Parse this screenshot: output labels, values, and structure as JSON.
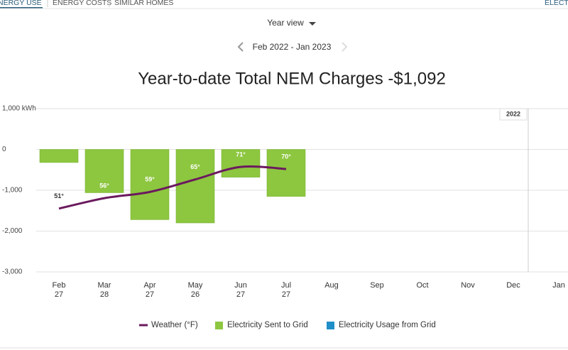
{
  "tabs": [
    "ENERGY USE",
    "ENERGY COSTS",
    "SIMILAR HOMES"
  ],
  "right_tab": "ELECTRIC",
  "view_selector": "Year view",
  "date_range": "Feb 2022 - Jan 2023",
  "chart_data": {
    "type": "bar",
    "title": "Year-to-date Total NEM Charges -$1,092",
    "categories": [
      "Feb",
      "Mar",
      "Apr",
      "May",
      "Jun",
      "Jul",
      "Aug",
      "Sep",
      "Oct",
      "Nov",
      "Dec",
      "Jan"
    ],
    "category_days": [
      "27",
      "28",
      "27",
      "26",
      "27",
      "27",
      null,
      null,
      null,
      null,
      null,
      null
    ],
    "annotation": "2022",
    "ylim": [
      -3000,
      1000
    ],
    "yticks": [
      {
        "value": 1000,
        "label": "1,000 kWh"
      },
      0,
      {
        "value": -1000,
        "label": "-1,000"
      },
      {
        "value": -2000,
        "label": "-2,000"
      },
      {
        "value": -3000,
        "label": "-3,000"
      }
    ],
    "y2lim": [
      20.6,
      99
    ],
    "grid": true,
    "series": [
      {
        "name": "Weather (°F)",
        "type": "line",
        "axis": "y2",
        "color": "#6b1a5e",
        "values": [
          51,
          56,
          59,
          65,
          71,
          70,
          null,
          null,
          null,
          null,
          null,
          null
        ],
        "value_labels": [
          "51°",
          "56°",
          "59°",
          "65°",
          "71°",
          "70°",
          null,
          null,
          null,
          null,
          null,
          null
        ]
      },
      {
        "name": "Electricity Sent to Grid",
        "type": "bar",
        "color": "#8dc63f",
        "values": [
          -320,
          -1060,
          -1720,
          -1800,
          -680,
          -1150,
          null,
          null,
          null,
          null,
          null,
          null
        ]
      },
      {
        "name": "Electricity Usage from Grid",
        "type": "bar",
        "color": "#1f8fc9",
        "values": [
          null,
          null,
          null,
          null,
          null,
          null,
          null,
          null,
          null,
          null,
          null,
          null
        ]
      }
    ]
  }
}
